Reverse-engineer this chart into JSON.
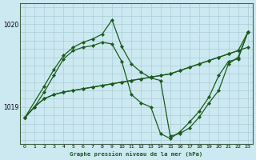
{
  "title": "Graphe pression niveau de la mer (hPa)",
  "background_color": "#cce8f0",
  "line_color_1": "#1a5c1a",
  "line_color_2": "#1a5c1a",
  "line_color_3": "#1a5c1a",
  "line_color_4": "#1a5c1a",
  "grid_color": "#aacdd8",
  "xlim": [
    -0.5,
    23.5
  ],
  "ylim": [
    1018.55,
    1020.25
  ],
  "yticks": [
    1019,
    1020
  ],
  "xticks": [
    0,
    1,
    2,
    3,
    4,
    5,
    6,
    7,
    8,
    9,
    10,
    11,
    12,
    13,
    14,
    15,
    16,
    17,
    18,
    19,
    20,
    21,
    22,
    23
  ],
  "series1_x": [
    0,
    1,
    2,
    3,
    4,
    5,
    6,
    7,
    8,
    9,
    10,
    11,
    12,
    13,
    14,
    15,
    16,
    17,
    18,
    19,
    20,
    21,
    22,
    23
  ],
  "series1_y": [
    1018.87,
    1019.0,
    1019.1,
    1019.15,
    1019.18,
    1019.2,
    1019.22,
    1019.24,
    1019.26,
    1019.28,
    1019.3,
    1019.32,
    1019.34,
    1019.36,
    1019.38,
    1019.4,
    1019.44,
    1019.48,
    1019.52,
    1019.56,
    1019.6,
    1019.64,
    1019.68,
    1019.72
  ],
  "series2_x": [
    0,
    1,
    2,
    3,
    4,
    5,
    6,
    7,
    8,
    9,
    10,
    11,
    12,
    13,
    14,
    15,
    16,
    17,
    18,
    19,
    20,
    21,
    22,
    23
  ],
  "series2_y": [
    1018.87,
    1019.0,
    1019.1,
    1019.15,
    1019.18,
    1019.2,
    1019.22,
    1019.24,
    1019.26,
    1019.28,
    1019.3,
    1019.32,
    1019.34,
    1019.36,
    1019.38,
    1019.4,
    1019.44,
    1019.48,
    1019.52,
    1019.56,
    1019.6,
    1019.64,
    1019.68,
    1019.9
  ],
  "series3_x": [
    0,
    1,
    2,
    3,
    4,
    5,
    6,
    7,
    8,
    9,
    10,
    11,
    12,
    13,
    14,
    15,
    16,
    17,
    18,
    19,
    20,
    21,
    22,
    23
  ],
  "series3_y": [
    1018.87,
    1019.0,
    1019.18,
    1019.38,
    1019.58,
    1019.68,
    1019.72,
    1019.74,
    1019.78,
    1019.76,
    1019.55,
    1019.15,
    1019.05,
    1019.0,
    1018.68,
    1018.62,
    1018.7,
    1018.82,
    1018.95,
    1019.12,
    1019.38,
    1019.55,
    1019.58,
    1019.9
  ],
  "series4_x": [
    0,
    2,
    3,
    4,
    5,
    6,
    7,
    8,
    9,
    10,
    11,
    12,
    13,
    14,
    15,
    16,
    17,
    18,
    19,
    20,
    21,
    22,
    23
  ],
  "series4_y": [
    1018.87,
    1019.25,
    1019.45,
    1019.62,
    1019.72,
    1019.78,
    1019.82,
    1019.88,
    1020.05,
    1019.73,
    1019.52,
    1019.42,
    1019.35,
    1019.32,
    1018.65,
    1018.68,
    1018.75,
    1018.88,
    1019.05,
    1019.2,
    1019.52,
    1019.6,
    1019.9
  ]
}
